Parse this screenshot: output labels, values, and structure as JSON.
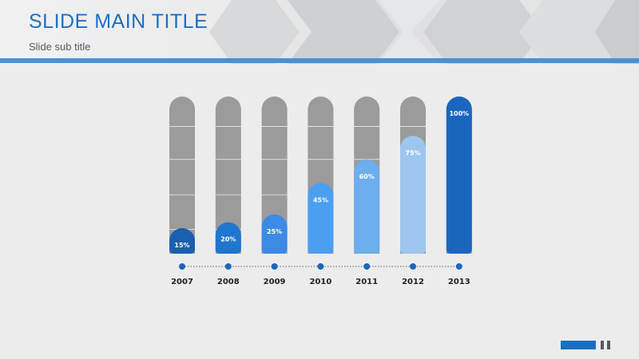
{
  "slide": {
    "title": "SLIDE MAIN TITLE",
    "subtitle": "Slide sub title"
  },
  "colors": {
    "accent": "#4a90d9",
    "title": "#1e6fbf",
    "track": "#9b9b9b",
    "bars": [
      "#1a5fb0",
      "#1f76cf",
      "#3a8ae6",
      "#4c9ef0",
      "#6daeec",
      "#9cc6ee",
      "#1a66bf"
    ]
  },
  "chart_data": {
    "type": "bar",
    "categories": [
      "2007",
      "2008",
      "2009",
      "2010",
      "2011",
      "2012",
      "2013"
    ],
    "values": [
      15,
      20,
      25,
      45,
      60,
      75,
      100
    ],
    "data_labels": [
      "15%",
      "20%",
      "25%",
      "45%",
      "60%",
      "75%",
      "100%"
    ],
    "ylim": [
      0,
      100
    ],
    "grid": true,
    "legend": "none"
  }
}
